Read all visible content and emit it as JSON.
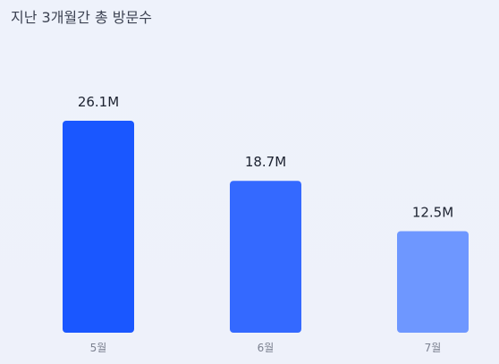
{
  "header": {
    "title": "지난 3개월간 총 방문수"
  },
  "chart_data": {
    "type": "bar",
    "title": "지난 3개월간 총 방문수",
    "xlabel": "",
    "ylabel": "",
    "categories": [
      "5월",
      "6월",
      "7월"
    ],
    "values": [
      26.1,
      18.7,
      12.5
    ],
    "value_labels": [
      "26.1M",
      "18.7M",
      "12.5M"
    ],
    "unit": "M",
    "ylim": [
      0,
      26.1
    ],
    "grid": false,
    "legend": "none",
    "colors": [
      "#1a57ff",
      "#3469ff",
      "#6e97ff"
    ]
  }
}
